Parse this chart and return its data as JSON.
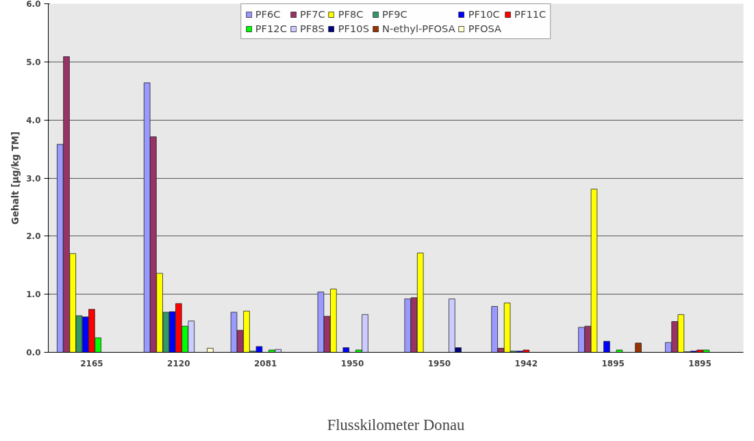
{
  "chart_data": {
    "type": "bar",
    "xlabel": "Flusskilometer Donau",
    "ylabel": "Gehalt [µg/kg TM]",
    "categories": [
      "2165",
      "2120",
      "2081",
      "1950",
      "1950",
      "1942",
      "1895",
      "1895"
    ],
    "series": [
      {
        "name": "PF6C",
        "color": "#9999ff",
        "values": [
          3.58,
          4.64,
          0.69,
          1.04,
          0.92,
          0.79,
          0.43,
          0.17
        ]
      },
      {
        "name": "PF7C",
        "color": "#993366",
        "values": [
          5.09,
          3.71,
          0.38,
          0.62,
          0.94,
          0.07,
          0.45,
          0.53
        ]
      },
      {
        "name": "PF8C",
        "color": "#ffff00",
        "values": [
          1.7,
          1.36,
          0.71,
          1.09,
          1.71,
          0.85,
          2.81,
          0.65
        ]
      },
      {
        "name": "PF9C",
        "color": "#339966",
        "values": [
          0.63,
          0.69,
          0.02,
          null,
          null,
          0.02,
          null,
          0.01
        ]
      },
      {
        "name": "PF10C",
        "color": "#0000ff",
        "values": [
          0.61,
          0.7,
          0.1,
          0.08,
          null,
          0.02,
          0.19,
          0.02
        ]
      },
      {
        "name": "PF11C",
        "color": "#ff0000",
        "values": [
          0.74,
          0.84,
          null,
          null,
          null,
          0.04,
          null,
          0.04
        ]
      },
      {
        "name": "PF12C",
        "color": "#00ff00",
        "values": [
          0.25,
          0.45,
          0.04,
          0.04,
          null,
          null,
          0.04,
          0.04
        ]
      },
      {
        "name": "PF8S",
        "color": "#ccccff",
        "values": [
          null,
          0.54,
          0.05,
          0.65,
          0.92,
          null,
          null,
          null
        ]
      },
      {
        "name": "PF10S",
        "color": "#000080",
        "values": [
          null,
          null,
          null,
          null,
          0.08,
          null,
          null,
          null
        ]
      },
      {
        "name": "N-ethyl-PFOSA",
        "color": "#993300",
        "values": [
          null,
          null,
          null,
          null,
          null,
          null,
          0.16,
          null
        ]
      },
      {
        "name": "PFOSA",
        "color": "#ffffcc",
        "values": [
          null,
          0.07,
          null,
          null,
          null,
          null,
          null,
          null
        ]
      }
    ],
    "ylim": [
      0,
      6
    ],
    "yticks": [
      {
        "value": 0,
        "label": "0.0"
      },
      {
        "value": 1,
        "label": "1.0"
      },
      {
        "value": 2,
        "label": "2.0"
      },
      {
        "value": 3,
        "label": "3.0"
      },
      {
        "value": 4,
        "label": "4.0"
      },
      {
        "value": 5,
        "label": "5.0"
      },
      {
        "value": 6,
        "label": "6.0"
      }
    ],
    "grid": "y",
    "legend": "top"
  }
}
